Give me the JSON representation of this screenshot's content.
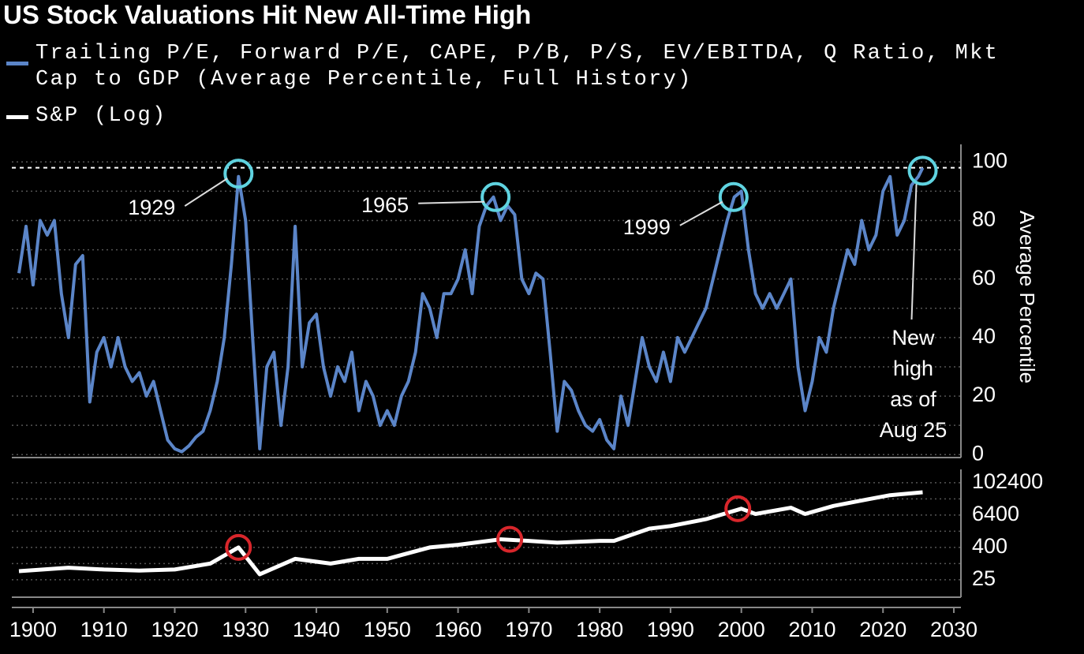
{
  "chart_data": [
    {
      "type": "line",
      "title": "US Stock Valuations Hit New All-Time High",
      "y_label": "Average Percentile",
      "x": [
        1898,
        1899,
        1900,
        1901,
        1902,
        1903,
        1904,
        1905,
        1906,
        1907,
        1908,
        1909,
        1910,
        1911,
        1912,
        1913,
        1914,
        1915,
        1916,
        1917,
        1918,
        1919,
        1920,
        1921,
        1922,
        1923,
        1924,
        1925,
        1926,
        1927,
        1928,
        1929,
        1930,
        1931,
        1932,
        1933,
        1934,
        1935,
        1936,
        1937,
        1938,
        1939,
        1940,
        1941,
        1942,
        1943,
        1944,
        1945,
        1946,
        1947,
        1948,
        1949,
        1950,
        1951,
        1952,
        1953,
        1954,
        1955,
        1956,
        1957,
        1958,
        1959,
        1960,
        1961,
        1962,
        1963,
        1964,
        1965,
        1966,
        1967,
        1968,
        1969,
        1970,
        1971,
        1972,
        1973,
        1974,
        1975,
        1976,
        1977,
        1978,
        1979,
        1980,
        1981,
        1982,
        1983,
        1984,
        1985,
        1986,
        1987,
        1988,
        1989,
        1990,
        1991,
        1992,
        1993,
        1994,
        1995,
        1996,
        1997,
        1998,
        1999,
        2000,
        2001,
        2002,
        2003,
        2004,
        2005,
        2006,
        2007,
        2008,
        2009,
        2010,
        2011,
        2012,
        2013,
        2014,
        2015,
        2016,
        2017,
        2018,
        2019,
        2020,
        2021,
        2022,
        2023,
        2024,
        2025,
        2025.6
      ],
      "series": [
        {
          "name": "Trailing P/E, Forward P/E, CAPE, P/B, P/S, EV/EBITDA, Q Ratio, Mkt Cap to GDP (Average Percentile, Full History)",
          "color": "#5b85c8",
          "values": [
            62,
            78,
            58,
            80,
            75,
            80,
            55,
            40,
            65,
            68,
            18,
            35,
            40,
            30,
            40,
            30,
            25,
            28,
            20,
            25,
            15,
            5,
            2,
            1,
            3,
            6,
            8,
            15,
            25,
            40,
            65,
            95,
            80,
            40,
            2,
            30,
            35,
            10,
            30,
            78,
            30,
            45,
            48,
            30,
            20,
            30,
            25,
            35,
            15,
            25,
            20,
            10,
            15,
            10,
            20,
            25,
            35,
            55,
            50,
            40,
            55,
            55,
            60,
            70,
            55,
            78,
            85,
            88,
            80,
            85,
            82,
            60,
            55,
            62,
            60,
            35,
            8,
            25,
            22,
            15,
            10,
            8,
            12,
            5,
            2,
            20,
            10,
            25,
            40,
            30,
            25,
            35,
            25,
            40,
            35,
            40,
            45,
            50,
            60,
            70,
            80,
            88,
            90,
            70,
            55,
            50,
            55,
            50,
            55,
            60,
            30,
            15,
            25,
            40,
            35,
            50,
            60,
            70,
            65,
            80,
            70,
            75,
            90,
            95,
            75,
            80,
            92,
            95,
            98
          ]
        }
      ],
      "xlim": [
        1897,
        2031
      ],
      "ylim": [
        -1,
        106
      ],
      "yticks": [
        0,
        20,
        40,
        60,
        80,
        100
      ],
      "grid": true,
      "grid_minor": true,
      "reference_line": 98,
      "marker_color": "#5fd3e0",
      "annotations": [
        {
          "text": "1929",
          "x": 1929,
          "y": 96
        },
        {
          "text": "1965",
          "x": 1965.3,
          "y": 88
        },
        {
          "text": "1999",
          "x": 1998.9,
          "y": 88
        },
        {
          "text": [
            "New",
            "high",
            "as of",
            "Aug 25"
          ],
          "x": 2025.6,
          "y": 97
        }
      ]
    },
    {
      "type": "line",
      "log_scale": true,
      "x": [
        1898,
        1905,
        1910,
        1915,
        1920,
        1925,
        1929,
        1932,
        1937,
        1942,
        1946,
        1950,
        1956,
        1960,
        1966,
        1970,
        1974,
        1980,
        1982,
        1987,
        1990,
        1995,
        2000,
        2002,
        2007,
        2009,
        2013,
        2018,
        2021,
        2025.6
      ],
      "series": [
        {
          "name": "S&P (Log)",
          "color": "#ffffff",
          "values": [
            52,
            70,
            60,
            55,
            60,
            100,
            400,
            40,
            150,
            100,
            150,
            150,
            400,
            500,
            800,
            700,
            600,
            700,
            700,
            2000,
            2500,
            4500,
            11000,
            7000,
            12000,
            7000,
            14000,
            25000,
            35000,
            45000
          ]
        }
      ],
      "xlim": [
        1897,
        2031
      ],
      "ylim": [
        5.6,
        320000
      ],
      "xticks": [
        1900,
        1910,
        1920,
        1930,
        1940,
        1950,
        1960,
        1970,
        1980,
        1990,
        2000,
        2010,
        2020,
        2030
      ],
      "yticks": [
        25,
        400,
        6400,
        102400
      ],
      "grid": true,
      "grid_minor": true,
      "marker_color": "#d8262b",
      "markers": [
        {
          "x": 1929,
          "y": 400
        },
        {
          "x": 1967.3,
          "y": 800
        },
        {
          "x": 1999.5,
          "y": 11000
        }
      ]
    }
  ]
}
